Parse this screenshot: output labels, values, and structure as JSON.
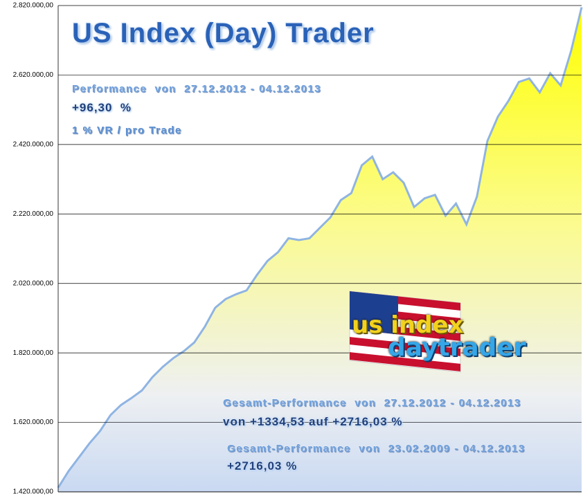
{
  "chart_data": {
    "type": "area",
    "title": "US Index (Day) Trader",
    "annotations": [
      "Performance  von  27.12.2012 - 04.12.2013",
      "+96,30  %",
      "1 % VR / pro Trade",
      "Gesamt-Performance  von  27.12.2012 - 04.12.2013",
      "von +1334,53 auf +2716,03 %",
      "Gesamt-Performance  von  23.02.2009 - 04.12.2013",
      "+2716,03 %"
    ],
    "logo": [
      "us index",
      "daytrader"
    ],
    "values": [
      1432000,
      1480000,
      1520000,
      1560000,
      1595000,
      1641000,
      1670000,
      1690000,
      1712000,
      1750000,
      1780000,
      1805000,
      1825000,
      1850000,
      1895000,
      1950000,
      1975000,
      1989000,
      2000000,
      2045000,
      2085000,
      2110000,
      2150000,
      2145000,
      2150000,
      2180000,
      2210000,
      2260000,
      2280000,
      2360000,
      2385000,
      2320000,
      2340000,
      2310000,
      2240000,
      2265000,
      2275000,
      2215000,
      2250000,
      2190000,
      2270000,
      2430000,
      2500000,
      2545000,
      2600000,
      2610000,
      2570000,
      2625000,
      2590000,
      2690000,
      2815000
    ],
    "color": "#ffff00",
    "line_color": "#8fb4e3",
    "ylim": [
      1420000,
      2820000
    ],
    "yticks": [
      {
        "value": 1420000,
        "label": "1.420.000,00"
      },
      {
        "value": 1620000,
        "label": "1.620.000,00"
      },
      {
        "value": 1820000,
        "label": "1.820.000,00"
      },
      {
        "value": 2020000,
        "label": "2.020.000,00"
      },
      {
        "value": 2220000,
        "label": "2.220.000,00"
      },
      {
        "value": 2420000,
        "label": "2.420.000,00"
      },
      {
        "value": 2620000,
        "label": "2.620.000,00"
      },
      {
        "value": 2820000,
        "label": "2.820.000,00"
      }
    ],
    "grid": true
  }
}
